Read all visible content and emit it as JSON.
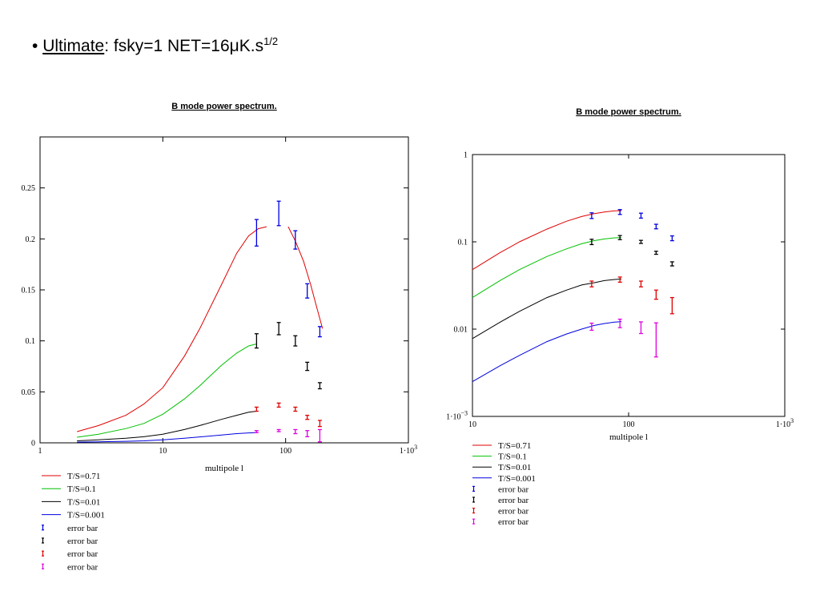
{
  "headline": {
    "bullet": "•",
    "label": "Ultimate",
    "rest": ": fsky=1 NET=16μK.s",
    "sup": "1/2"
  },
  "chart_data": [
    {
      "type": "line",
      "title": "B mode power spectrum.",
      "xlabel": "multipole l",
      "ylabel": "",
      "xscale": "log",
      "yscale": "linear",
      "xlim": [
        1,
        1000
      ],
      "ylim": [
        0,
        0.3
      ],
      "x_ticks": [
        {
          "v": 1,
          "label": "1"
        },
        {
          "v": 10,
          "label": "10"
        },
        {
          "v": 100,
          "label": "100"
        },
        {
          "v": 1000,
          "label": "1·10",
          "sup": "3"
        }
      ],
      "y_ticks": [
        {
          "v": 0,
          "label": "0"
        },
        {
          "v": 0.05,
          "label": "0.05"
        },
        {
          "v": 0.1,
          "label": "0.1"
        },
        {
          "v": 0.15,
          "label": "0.15"
        },
        {
          "v": 0.2,
          "label": "0.2"
        },
        {
          "v": 0.25,
          "label": "0.25"
        }
      ],
      "series": [
        {
          "name": "T/S=0.71",
          "color": "#e00000",
          "x": [
            2,
            3,
            5,
            7,
            10,
            15,
            20,
            30,
            40,
            50,
            60,
            70
          ],
          "y": [
            0.011,
            0.017,
            0.027,
            0.038,
            0.054,
            0.085,
            0.112,
            0.155,
            0.186,
            0.203,
            0.21,
            0.212
          ]
        },
        {
          "name": "T/S=0.1",
          "color": "#00c000",
          "x": [
            2,
            3,
            5,
            7,
            10,
            15,
            20,
            30,
            40,
            50,
            58
          ],
          "y": [
            0.0055,
            0.0085,
            0.014,
            0.019,
            0.028,
            0.043,
            0.056,
            0.076,
            0.088,
            0.095,
            0.097
          ]
        },
        {
          "name": "T/S=0.01",
          "color": "#000000",
          "x": [
            2,
            3,
            5,
            7,
            10,
            15,
            20,
            30,
            40,
            50,
            58
          ],
          "y": [
            0.002,
            0.003,
            0.0045,
            0.006,
            0.0085,
            0.013,
            0.017,
            0.023,
            0.027,
            0.03,
            0.031
          ]
        },
        {
          "name": "T/S=0.001",
          "color": "#0000e0",
          "x": [
            2,
            3,
            5,
            7,
            10,
            15,
            20,
            30,
            40,
            50,
            58
          ],
          "y": [
            0.0007,
            0.001,
            0.0015,
            0.002,
            0.003,
            0.0045,
            0.0058,
            0.0077,
            0.009,
            0.0097,
            0.01
          ]
        },
        {
          "name": "",
          "color": "#e00000",
          "x": [
            105,
            120,
            140,
            160,
            180,
            200
          ],
          "y": [
            0.212,
            0.198,
            0.178,
            0.155,
            0.132,
            0.112
          ]
        }
      ],
      "error_bars": [
        {
          "name": "error bar",
          "color": "#0000e0",
          "x": [
            58,
            88,
            120,
            150,
            190
          ],
          "y": [
            0.206,
            0.225,
            0.199,
            0.149,
            0.109
          ],
          "err": [
            0.013,
            0.012,
            0.009,
            0.007,
            0.005
          ]
        },
        {
          "name": "error bar",
          "color": "#000000",
          "x": [
            58,
            88,
            120,
            150,
            190
          ],
          "y": [
            0.1,
            0.112,
            0.1,
            0.075,
            0.056
          ],
          "err": [
            0.007,
            0.006,
            0.005,
            0.004,
            0.003
          ]
        },
        {
          "name": "error bar",
          "color": "#e00000",
          "x": [
            58,
            88,
            120,
            150,
            190
          ],
          "y": [
            0.033,
            0.037,
            0.033,
            0.025,
            0.019
          ],
          "err": [
            0.002,
            0.002,
            0.002,
            0.002,
            0.003
          ]
        },
        {
          "name": "error bar",
          "color": "#e000e0",
          "x": [
            58,
            88,
            120,
            150,
            190
          ],
          "y": [
            0.011,
            0.012,
            0.011,
            0.009,
            0.007
          ],
          "err": [
            0.001,
            0.001,
            0.002,
            0.003,
            0.006
          ]
        }
      ],
      "legend": [
        {
          "label": "T/S=0.71",
          "color": "#e00000",
          "kind": "line"
        },
        {
          "label": "T/S=0.1",
          "color": "#00c000",
          "kind": "line"
        },
        {
          "label": "T/S=0.01",
          "color": "#000000",
          "kind": "line"
        },
        {
          "label": "T/S=0.001",
          "color": "#0000e0",
          "kind": "line"
        },
        {
          "label": "error bar",
          "color": "#0000e0",
          "kind": "err"
        },
        {
          "label": "error bar",
          "color": "#000000",
          "kind": "err"
        },
        {
          "label": "error bar",
          "color": "#e00000",
          "kind": "err"
        },
        {
          "label": "error bar",
          "color": "#e000e0",
          "kind": "err"
        }
      ],
      "legend_position": "below"
    },
    {
      "type": "line",
      "title": "B mode power spectrum.",
      "xlabel": "multipole l",
      "ylabel": "",
      "xscale": "log",
      "yscale": "log",
      "xlim": [
        10,
        1000
      ],
      "ylim": [
        0.001,
        1
      ],
      "x_ticks": [
        {
          "v": 10,
          "label": "10"
        },
        {
          "v": 100,
          "label": "100"
        },
        {
          "v": 1000,
          "label": "1·10",
          "sup": "3"
        }
      ],
      "y_ticks": [
        {
          "v": 0.001,
          "label": "1·10",
          "sup": "−3"
        },
        {
          "v": 0.01,
          "label": "0.01"
        },
        {
          "v": 0.1,
          "label": "0.1"
        },
        {
          "v": 1,
          "label": "1"
        }
      ],
      "series": [
        {
          "name": "T/S=0.71",
          "color": "#e00000",
          "x": [
            10,
            15,
            20,
            30,
            40,
            50,
            60,
            70,
            80,
            90
          ],
          "y": [
            0.048,
            0.075,
            0.1,
            0.14,
            0.172,
            0.195,
            0.21,
            0.22,
            0.226,
            0.228
          ]
        },
        {
          "name": "T/S=0.1",
          "color": "#00c000",
          "x": [
            10,
            15,
            20,
            30,
            40,
            50,
            60,
            70,
            80,
            90
          ],
          "y": [
            0.023,
            0.036,
            0.048,
            0.068,
            0.083,
            0.095,
            0.103,
            0.108,
            0.111,
            0.112
          ]
        },
        {
          "name": "T/S=0.01",
          "color": "#000000",
          "x": [
            10,
            15,
            20,
            30,
            40,
            50,
            60,
            70,
            80,
            90
          ],
          "y": [
            0.0078,
            0.012,
            0.016,
            0.023,
            0.028,
            0.032,
            0.034,
            0.036,
            0.037,
            0.0375
          ]
        },
        {
          "name": "T/S=0.001",
          "color": "#0000e0",
          "x": [
            10,
            15,
            20,
            30,
            40,
            50,
            60,
            70,
            80,
            90
          ],
          "y": [
            0.0025,
            0.0038,
            0.005,
            0.0072,
            0.0088,
            0.01,
            0.011,
            0.0116,
            0.012,
            0.0122
          ]
        }
      ],
      "error_bars": [
        {
          "name": "error bar",
          "color": "#0000e0",
          "x": [
            58,
            88,
            120,
            150,
            190
          ],
          "y": [
            0.2,
            0.22,
            0.2,
            0.15,
            0.11
          ],
          "err": [
            0.015,
            0.014,
            0.013,
            0.009,
            0.007
          ]
        },
        {
          "name": "error bar",
          "color": "#000000",
          "x": [
            58,
            88,
            120,
            150,
            190
          ],
          "y": [
            0.1,
            0.112,
            0.1,
            0.075,
            0.056
          ],
          "err": [
            0.007,
            0.006,
            0.004,
            0.003,
            0.003
          ]
        },
        {
          "name": "error bar",
          "color": "#e00000",
          "x": [
            58,
            88,
            120,
            150,
            190
          ],
          "y": [
            0.033,
            0.037,
            0.033,
            0.025,
            0.019
          ],
          "err": [
            0.0025,
            0.0025,
            0.0025,
            0.003,
            0.004
          ]
        },
        {
          "name": "error bar",
          "color": "#e000e0",
          "x": [
            58,
            88,
            120,
            150,
            190
          ],
          "y": [
            0.0107,
            0.0117,
            0.0105,
            0.0083,
            0.0
          ],
          "err": [
            0.001,
            0.0013,
            0.0016,
            0.0035,
            0.0
          ]
        }
      ],
      "legend": [
        {
          "label": "T/S=0.71",
          "color": "#e00000",
          "kind": "line"
        },
        {
          "label": "T/S=0.1",
          "color": "#00c000",
          "kind": "line"
        },
        {
          "label": "T/S=0.01",
          "color": "#000000",
          "kind": "line"
        },
        {
          "label": "T/S=0.001",
          "color": "#0000e0",
          "kind": "line"
        },
        {
          "label": "error bar",
          "color": "#0000e0",
          "kind": "err"
        },
        {
          "label": "error bar",
          "color": "#000000",
          "kind": "err"
        },
        {
          "label": "error bar",
          "color": "#e00000",
          "kind": "err"
        },
        {
          "label": "error bar",
          "color": "#e000e0",
          "kind": "err"
        }
      ],
      "legend_position": "below"
    }
  ]
}
